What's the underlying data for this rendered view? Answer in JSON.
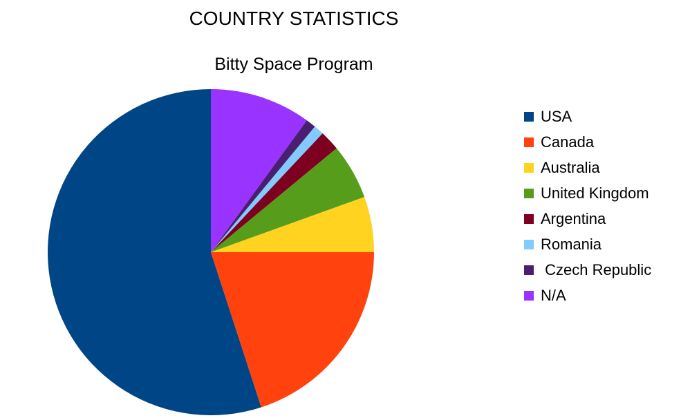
{
  "chart_data": {
    "type": "pie",
    "title": "COUNTRY STATISTICS",
    "subtitle": "Bitty Space Program",
    "legend_position": "right",
    "slices": [
      {
        "label": "USA",
        "value": 55.0,
        "color": "#004586"
      },
      {
        "label": "Canada",
        "value": 20.0,
        "color": "#ff420e"
      },
      {
        "label": "Australia",
        "value": 5.5,
        "color": "#ffd320"
      },
      {
        "label": "United Kingdom",
        "value": 5.5,
        "color": "#579d1c"
      },
      {
        "label": "Argentina",
        "value": 2.0,
        "color": "#7e0021"
      },
      {
        "label": "Romania",
        "value": 1.0,
        "color": "#83caff"
      },
      {
        "label": " Czech Republic",
        "value": 1.0,
        "color": "#4b1f6f"
      },
      {
        "label": "N/A",
        "value": 10.0,
        "color": "#9933ff"
      }
    ]
  }
}
